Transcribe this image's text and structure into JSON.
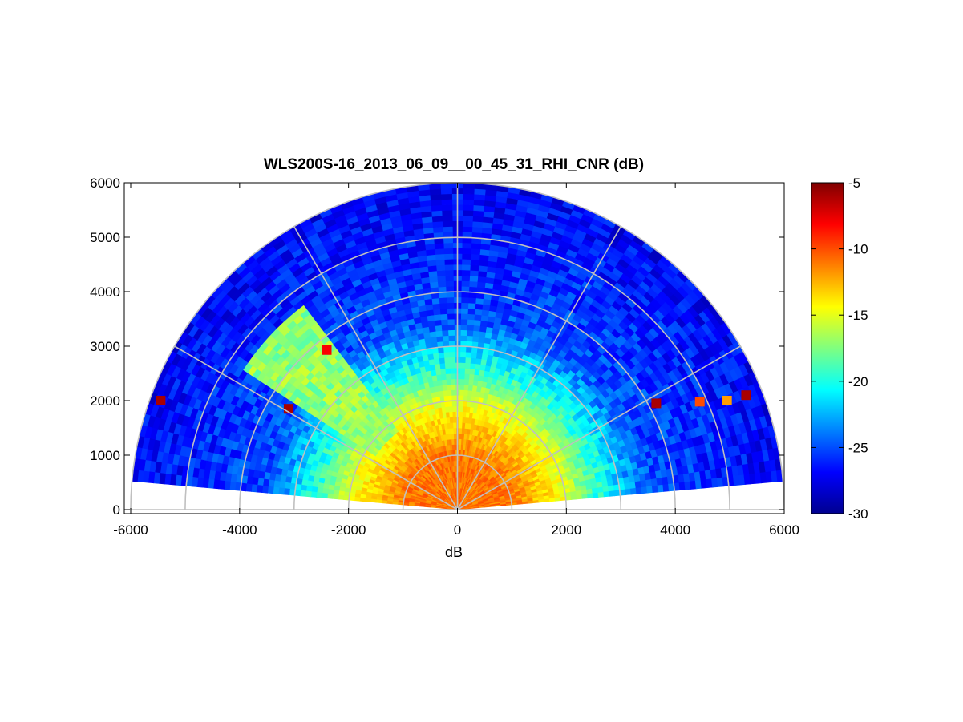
{
  "chart_data": {
    "type": "heatmap",
    "subtype": "polar-rhi-scan",
    "title": "WLS200S-16_2013_06_09__00_45_31_RHI_CNR (dB)",
    "xlabel": "dB",
    "ylabel": "",
    "xlim": [
      -6000,
      6000
    ],
    "ylim": [
      0,
      6000
    ],
    "x_ticks": [
      "-6000",
      "-4000",
      "-2000",
      "0",
      "2000",
      "4000",
      "6000"
    ],
    "y_ticks": [
      "0",
      "1000",
      "2000",
      "3000",
      "4000",
      "5000",
      "6000"
    ],
    "range_rings": [
      1000,
      2000,
      3000,
      4000,
      5000,
      6000
    ],
    "spokes_deg": [
      0,
      30,
      60,
      90,
      120,
      150,
      180
    ],
    "max_range": 6000,
    "scan_elevation_deg": [
      5,
      175
    ],
    "colormap": "jet",
    "colorbar": {
      "min": -30,
      "max": -5,
      "ticks": [
        "-5",
        "-10",
        "-15",
        "-20",
        "-25",
        "-30"
      ]
    },
    "cnr_profile": [
      {
        "range": 0,
        "value": -11
      },
      {
        "range": 1000,
        "value": -11
      },
      {
        "range": 1500,
        "value": -13
      },
      {
        "range": 2000,
        "value": -15
      },
      {
        "range": 2500,
        "value": -19
      },
      {
        "range": 3000,
        "value": -22
      },
      {
        "range": 3500,
        "value": -25
      },
      {
        "range": 6000,
        "value": -27
      }
    ],
    "aerosol_layer": {
      "range_min": 0,
      "range_max": 4700,
      "elevation_min_deg": 127,
      "elevation_max_deg": 147,
      "value": -17
    },
    "cloud_echoes": [
      {
        "x": -5450,
        "y": 2000,
        "value": -6
      },
      {
        "x": -3100,
        "y": 1850,
        "value": -6
      },
      {
        "x": -2400,
        "y": 2930,
        "value": -8
      },
      {
        "x": 3650,
        "y": 1950,
        "value": -6
      },
      {
        "x": 4450,
        "y": 1980,
        "value": -10
      },
      {
        "x": 4950,
        "y": 2000,
        "value": -12
      },
      {
        "x": 5300,
        "y": 2100,
        "value": -6
      }
    ]
  }
}
